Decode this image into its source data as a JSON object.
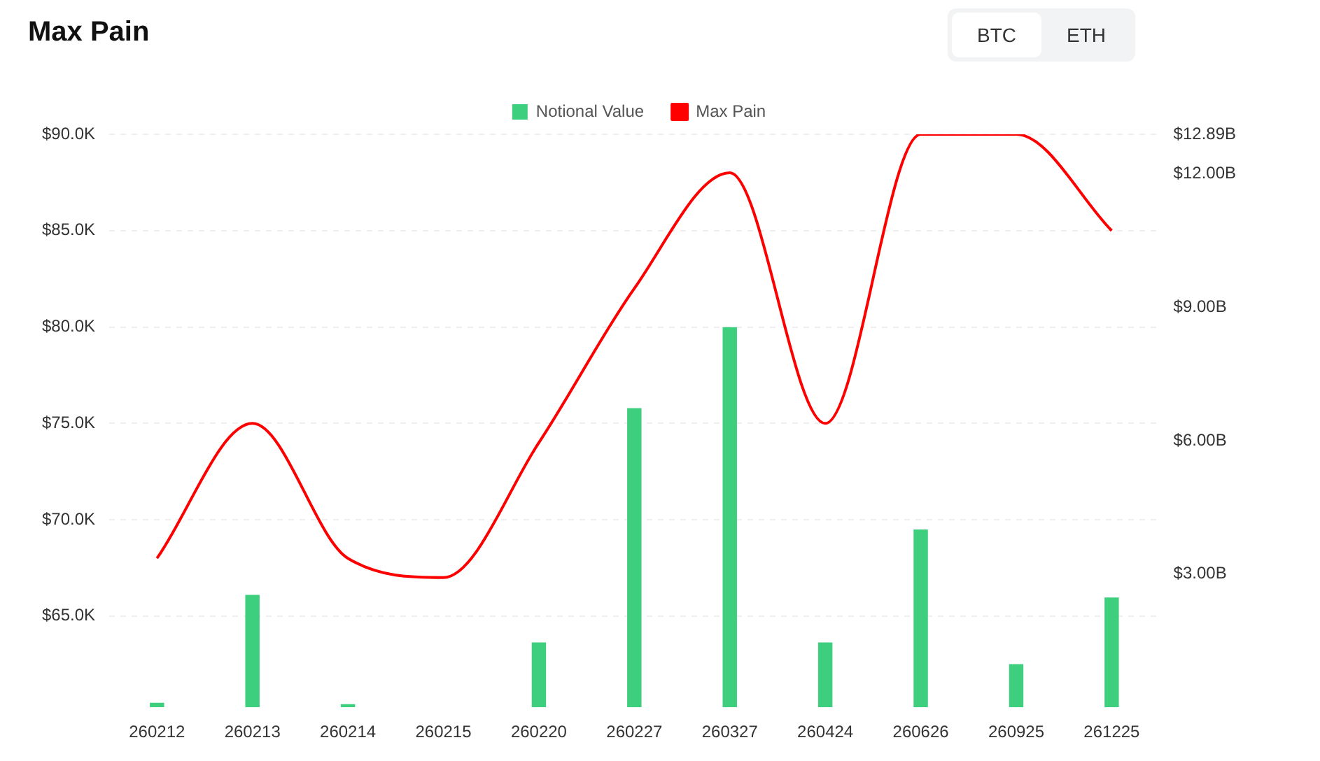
{
  "chart_data": {
    "type": "bar",
    "title": "Max Pain",
    "annotations": [
      "BTC",
      "ETH"
    ],
    "categories": [
      "260212",
      "260213",
      "260214",
      "260215",
      "260220",
      "260227",
      "260327",
      "260424",
      "260626",
      "260925",
      "261225"
    ],
    "series": [
      {
        "name": "Notional Value",
        "axis": "y2",
        "color": "#3ecf7e",
        "values": [
          0.1,
          2.53,
          0.07,
          0,
          1.46,
          6.73,
          8.55,
          1.46,
          4.0,
          0.97,
          2.47
        ]
      },
      {
        "name": "Max Pain",
        "type": "line",
        "color": "#ff0000",
        "marker": "none",
        "values": [
          68000,
          75000,
          68000,
          67000,
          74000,
          82000,
          88000,
          75000,
          90000,
          90000,
          85000
        ]
      }
    ],
    "ylim": [
      60270,
      90000
    ],
    "yticks": [
      {
        "value": 65000,
        "label": "$65.0K"
      },
      {
        "value": 70000,
        "label": "$70.0K"
      },
      {
        "value": 75000,
        "label": "$75.0K"
      },
      {
        "value": 80000,
        "label": "$80.0K"
      },
      {
        "value": 85000,
        "label": "$85.0K"
      },
      {
        "value": 90000,
        "label": "$90.0K"
      }
    ],
    "y2lim": [
      0,
      12.89
    ],
    "y2ticks": [
      {
        "value": 3,
        "label": "$3.00B"
      },
      {
        "value": 6,
        "label": "$6.00B"
      },
      {
        "value": 9,
        "label": "$9.00B"
      },
      {
        "value": 12,
        "label": "$12.00B"
      },
      {
        "value": 12.89,
        "label": "$12.89B"
      }
    ],
    "grid": "y",
    "legend": "top"
  }
}
